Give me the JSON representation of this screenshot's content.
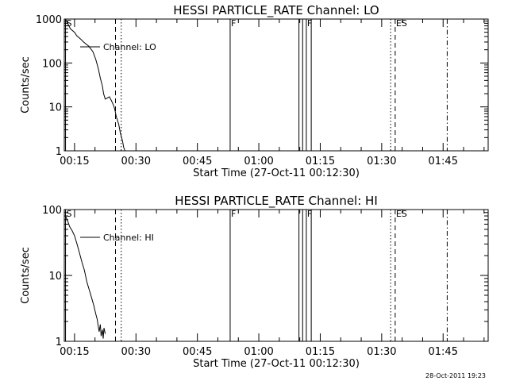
{
  "timestamp": "28-Oct-2011 19:23",
  "chart_data": [
    {
      "type": "line",
      "title": "HESSI PARTICLE_RATE Channel: LO",
      "xlabel": "Start Time (27-Oct-11 00:12:30)",
      "ylabel": "Counts/sec",
      "yscale": "log",
      "ylim": [
        1,
        1000
      ],
      "yticks": [
        {
          "v": 1,
          "label": "1"
        },
        {
          "v": 10,
          "label": "10"
        },
        {
          "v": 100,
          "label": "100"
        },
        {
          "v": 1000,
          "label": "1000"
        }
      ],
      "xlim_min": [
        12.5,
        116
      ],
      "xticks": [
        {
          "v": 15,
          "label": "00:15"
        },
        {
          "v": 30,
          "label": "00:30"
        },
        {
          "v": 45,
          "label": "00:45"
        },
        {
          "v": 60,
          "label": "01:00"
        },
        {
          "v": 75,
          "label": "01:15"
        },
        {
          "v": 90,
          "label": "01:30"
        },
        {
          "v": 105,
          "label": "01:45"
        }
      ],
      "series": [
        {
          "name": "Channel: LO",
          "x": [
            12.8,
            14.0,
            15.0,
            15.5,
            16.5,
            17.2,
            18.5,
            19.5,
            20.2,
            20.8,
            21.3,
            21.8,
            22.1,
            22.5,
            23.0,
            23.5,
            24.0,
            24.5,
            24.8,
            25.2,
            25.8,
            26.2,
            26.7,
            27.0,
            27.3
          ],
          "y": [
            1000,
            600,
            500,
            420,
            350,
            300,
            240,
            180,
            120,
            75,
            45,
            30,
            20,
            15,
            16,
            17,
            14,
            11,
            9,
            6,
            4,
            2.5,
            1.7,
            1.2,
            0.9
          ]
        }
      ],
      "markers": [
        {
          "t": 12.8,
          "style": "solid",
          "label": "S"
        },
        {
          "t": 25.0,
          "style": "dashed",
          "label": ""
        },
        {
          "t": 26.4,
          "style": "dotted",
          "label": ""
        },
        {
          "t": 53.0,
          "style": "solid",
          "label": "F"
        },
        {
          "t": 69.8,
          "style": "solid",
          "label": ""
        },
        {
          "t": 70.7,
          "style": "solid",
          "label": ""
        },
        {
          "t": 71.6,
          "style": "solid",
          "label": "F"
        },
        {
          "t": 72.8,
          "style": "solid",
          "label": ""
        },
        {
          "t": 92.2,
          "style": "dotted",
          "label": ""
        },
        {
          "t": 93.3,
          "style": "dashed",
          "label": "ES"
        },
        {
          "t": 106.0,
          "style": "dashdot",
          "label": ""
        }
      ]
    },
    {
      "type": "line",
      "title": "HESSI PARTICLE_RATE Channel: HI",
      "xlabel": "Start Time (27-Oct-11 00:12:30)",
      "ylabel": "Counts/sec",
      "yscale": "log",
      "ylim": [
        1,
        100
      ],
      "yticks": [
        {
          "v": 1,
          "label": "1"
        },
        {
          "v": 10,
          "label": "10"
        },
        {
          "v": 100,
          "label": "100"
        }
      ],
      "xlim_min": [
        12.5,
        116
      ],
      "xticks": [
        {
          "v": 15,
          "label": "00:15"
        },
        {
          "v": 30,
          "label": "00:30"
        },
        {
          "v": 45,
          "label": "00:45"
        },
        {
          "v": 60,
          "label": "01:00"
        },
        {
          "v": 75,
          "label": "01:15"
        },
        {
          "v": 90,
          "label": "01:30"
        },
        {
          "v": 105,
          "label": "01:45"
        }
      ],
      "series": [
        {
          "name": "Channel: HI",
          "x": [
            12.8,
            13.3,
            13.8,
            14.4,
            15.0,
            15.6,
            16.2,
            16.8,
            17.4,
            18.0,
            18.6,
            19.2,
            19.7,
            20.2,
            20.5,
            20.8,
            21.0,
            21.3,
            21.5,
            21.8,
            22.0,
            22.2,
            22.5
          ],
          "y": [
            80,
            68,
            55,
            48,
            40,
            30,
            22,
            16,
            12,
            8,
            6,
            4.5,
            3.5,
            2.6,
            2.2,
            1.7,
            1.4,
            1.8,
            1.2,
            1.5,
            1.1,
            1.6,
            1.3
          ]
        }
      ],
      "markers": [
        {
          "t": 12.8,
          "style": "solid",
          "label": "S"
        },
        {
          "t": 25.0,
          "style": "dashed",
          "label": ""
        },
        {
          "t": 26.4,
          "style": "dotted",
          "label": ""
        },
        {
          "t": 53.0,
          "style": "solid",
          "label": "F"
        },
        {
          "t": 69.8,
          "style": "solid",
          "label": ""
        },
        {
          "t": 70.7,
          "style": "solid",
          "label": ""
        },
        {
          "t": 71.6,
          "style": "solid",
          "label": "F"
        },
        {
          "t": 72.8,
          "style": "solid",
          "label": ""
        },
        {
          "t": 92.2,
          "style": "dotted",
          "label": ""
        },
        {
          "t": 93.3,
          "style": "dashed",
          "label": "ES"
        },
        {
          "t": 106.0,
          "style": "dashdot",
          "label": ""
        }
      ]
    }
  ]
}
